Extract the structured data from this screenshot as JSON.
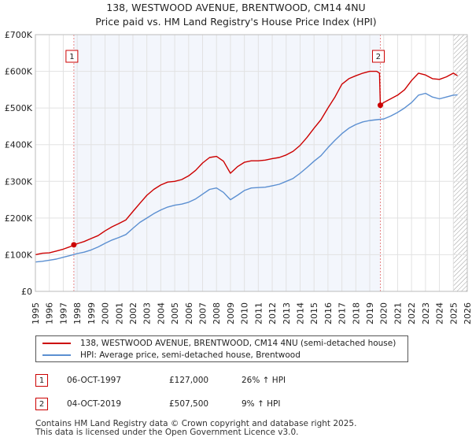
{
  "title_line1": "138, WESTWOOD AVENUE, BRENTWOOD, CM14 4NU",
  "title_line2": "Price paid vs. HM Land Registry's House Price Index (HPI)",
  "colors": {
    "property": "#cc0000",
    "hpi": "#5b8fd1",
    "grid": "#e2e2e2",
    "plot_bg": "#ffffff",
    "marker_line": "#e88888",
    "sale_shade": "#dde6f5"
  },
  "chart_data": {
    "type": "line",
    "title": "138, WESTWOOD AVENUE, BRENTWOOD, CM14 4NU - Price paid vs. HM Land Registry's House Price Index (HPI)",
    "xlabel": "",
    "ylabel": "",
    "xlim": [
      1995,
      2026
    ],
    "ylim": [
      0,
      700000
    ],
    "x_ticks": [
      1995,
      1996,
      1997,
      1998,
      1999,
      2000,
      2001,
      2002,
      2003,
      2004,
      2005,
      2006,
      2007,
      2008,
      2009,
      2010,
      2011,
      2012,
      2013,
      2014,
      2015,
      2016,
      2017,
      2018,
      2019,
      2020,
      2021,
      2022,
      2023,
      2024,
      2025,
      2026
    ],
    "y_ticks": [
      {
        "value": 0,
        "label": "£0"
      },
      {
        "value": 100000,
        "label": "£100K"
      },
      {
        "value": 200000,
        "label": "£200K"
      },
      {
        "value": 300000,
        "label": "£300K"
      },
      {
        "value": 400000,
        "label": "£400K"
      },
      {
        "value": 500000,
        "label": "£500K"
      },
      {
        "value": 600000,
        "label": "£600K"
      },
      {
        "value": 700000,
        "label": "£700K"
      }
    ],
    "grid": true,
    "hatched_from": 2025.0,
    "series": [
      {
        "name": "138, WESTWOOD AVENUE, BRENTWOOD, CM14 4NU (semi-detached house)",
        "color": "#cc0000",
        "points": [
          [
            1995.0,
            100000
          ],
          [
            1995.5,
            104000
          ],
          [
            1996.0,
            105000
          ],
          [
            1996.5,
            110000
          ],
          [
            1997.0,
            115000
          ],
          [
            1997.5,
            122000
          ],
          [
            1997.76,
            127000
          ],
          [
            1998.0,
            130000
          ],
          [
            1998.5,
            136000
          ],
          [
            1999.0,
            144000
          ],
          [
            1999.5,
            152000
          ],
          [
            2000.0,
            165000
          ],
          [
            2000.5,
            176000
          ],
          [
            2001.0,
            185000
          ],
          [
            2001.5,
            195000
          ],
          [
            2002.0,
            218000
          ],
          [
            2002.5,
            240000
          ],
          [
            2003.0,
            262000
          ],
          [
            2003.5,
            278000
          ],
          [
            2004.0,
            290000
          ],
          [
            2004.5,
            298000
          ],
          [
            2005.0,
            300000
          ],
          [
            2005.5,
            305000
          ],
          [
            2006.0,
            315000
          ],
          [
            2006.5,
            330000
          ],
          [
            2007.0,
            350000
          ],
          [
            2007.5,
            365000
          ],
          [
            2008.0,
            368000
          ],
          [
            2008.5,
            355000
          ],
          [
            2009.0,
            322000
          ],
          [
            2009.5,
            340000
          ],
          [
            2010.0,
            352000
          ],
          [
            2010.5,
            356000
          ],
          [
            2011.0,
            356000
          ],
          [
            2011.5,
            358000
          ],
          [
            2012.0,
            362000
          ],
          [
            2012.5,
            365000
          ],
          [
            2013.0,
            372000
          ],
          [
            2013.5,
            382000
          ],
          [
            2014.0,
            398000
          ],
          [
            2014.5,
            420000
          ],
          [
            2015.0,
            445000
          ],
          [
            2015.5,
            468000
          ],
          [
            2016.0,
            500000
          ],
          [
            2016.5,
            530000
          ],
          [
            2017.0,
            565000
          ],
          [
            2017.5,
            580000
          ],
          [
            2018.0,
            588000
          ],
          [
            2018.5,
            595000
          ],
          [
            2019.0,
            600000
          ],
          [
            2019.5,
            600000
          ],
          [
            2019.7,
            595000
          ],
          [
            2019.76,
            507500
          ],
          [
            2020.0,
            515000
          ],
          [
            2020.5,
            525000
          ],
          [
            2021.0,
            535000
          ],
          [
            2021.5,
            550000
          ],
          [
            2022.0,
            575000
          ],
          [
            2022.5,
            595000
          ],
          [
            2023.0,
            590000
          ],
          [
            2023.5,
            580000
          ],
          [
            2024.0,
            578000
          ],
          [
            2024.5,
            585000
          ],
          [
            2025.0,
            595000
          ],
          [
            2025.3,
            588000
          ]
        ]
      },
      {
        "name": "HPI: Average price, semi-detached house, Brentwood",
        "color": "#5b8fd1",
        "points": [
          [
            1995.0,
            80000
          ],
          [
            1995.5,
            82000
          ],
          [
            1996.0,
            85000
          ],
          [
            1996.5,
            88000
          ],
          [
            1997.0,
            93000
          ],
          [
            1997.5,
            98000
          ],
          [
            1998.0,
            103000
          ],
          [
            1998.5,
            107000
          ],
          [
            1999.0,
            113000
          ],
          [
            1999.5,
            121000
          ],
          [
            2000.0,
            131000
          ],
          [
            2000.5,
            140000
          ],
          [
            2001.0,
            147000
          ],
          [
            2001.5,
            155000
          ],
          [
            2002.0,
            172000
          ],
          [
            2002.5,
            188000
          ],
          [
            2003.0,
            200000
          ],
          [
            2003.5,
            212000
          ],
          [
            2004.0,
            222000
          ],
          [
            2004.5,
            230000
          ],
          [
            2005.0,
            235000
          ],
          [
            2005.5,
            238000
          ],
          [
            2006.0,
            243000
          ],
          [
            2006.5,
            252000
          ],
          [
            2007.0,
            265000
          ],
          [
            2007.5,
            278000
          ],
          [
            2008.0,
            282000
          ],
          [
            2008.5,
            270000
          ],
          [
            2009.0,
            250000
          ],
          [
            2009.5,
            262000
          ],
          [
            2010.0,
            275000
          ],
          [
            2010.5,
            282000
          ],
          [
            2011.0,
            283000
          ],
          [
            2011.5,
            284000
          ],
          [
            2012.0,
            288000
          ],
          [
            2012.5,
            292000
          ],
          [
            2013.0,
            300000
          ],
          [
            2013.5,
            308000
          ],
          [
            2014.0,
            322000
          ],
          [
            2014.5,
            338000
          ],
          [
            2015.0,
            355000
          ],
          [
            2015.5,
            370000
          ],
          [
            2016.0,
            392000
          ],
          [
            2016.5,
            412000
          ],
          [
            2017.0,
            430000
          ],
          [
            2017.5,
            445000
          ],
          [
            2018.0,
            455000
          ],
          [
            2018.5,
            462000
          ],
          [
            2019.0,
            466000
          ],
          [
            2019.5,
            468000
          ],
          [
            2020.0,
            470000
          ],
          [
            2020.5,
            478000
          ],
          [
            2021.0,
            488000
          ],
          [
            2021.5,
            500000
          ],
          [
            2022.0,
            515000
          ],
          [
            2022.5,
            535000
          ],
          [
            2023.0,
            540000
          ],
          [
            2023.5,
            530000
          ],
          [
            2024.0,
            525000
          ],
          [
            2024.5,
            530000
          ],
          [
            2025.0,
            535000
          ],
          [
            2025.3,
            536000
          ]
        ]
      }
    ],
    "annotations": [
      {
        "label": "1",
        "x": 1997.76,
        "y": 127000
      },
      {
        "label": "2",
        "x": 2019.76,
        "y": 507500
      }
    ]
  },
  "legend": {
    "property_label": "138, WESTWOOD AVENUE, BRENTWOOD, CM14 4NU (semi-detached house)",
    "hpi_label": "HPI: Average price, semi-detached house, Brentwood"
  },
  "sales": [
    {
      "num": "1",
      "date": "06-OCT-1997",
      "price": "£127,000",
      "hpi": "26% ↑ HPI"
    },
    {
      "num": "2",
      "date": "04-OCT-2019",
      "price": "£507,500",
      "hpi": "9% ↑ HPI"
    }
  ],
  "footer": {
    "line1": "Contains HM Land Registry data © Crown copyright and database right 2025.",
    "line2": "This data is licensed under the Open Government Licence v3.0."
  }
}
